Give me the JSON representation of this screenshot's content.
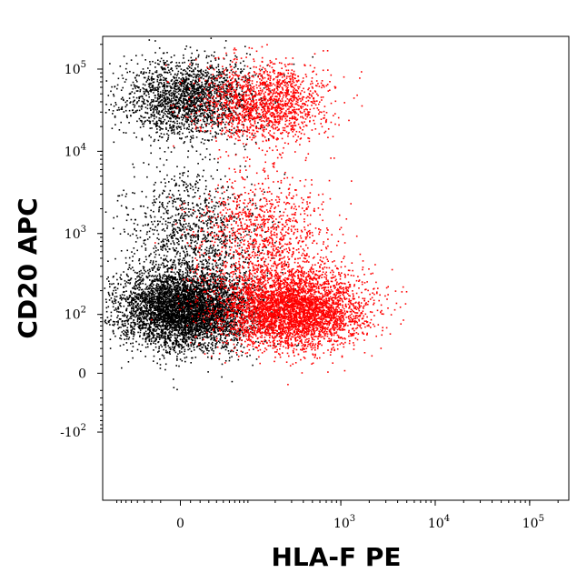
{
  "chart_data": {
    "type": "scatter",
    "xlabel": "HLA-F PE",
    "ylabel": "CD20 APC",
    "x_scale": "biexponential",
    "y_scale": "biexponential",
    "x_ticks": [
      {
        "value": 0,
        "base": "0",
        "exp": ""
      },
      {
        "value": 1000,
        "base": "10",
        "exp": "3"
      },
      {
        "value": 10000,
        "base": "10",
        "exp": "4"
      },
      {
        "value": 100000,
        "base": "10",
        "exp": "5"
      }
    ],
    "y_ticks": [
      {
        "value": 100000,
        "base": "10",
        "exp": "5"
      },
      {
        "value": 10000,
        "base": "10",
        "exp": "4"
      },
      {
        "value": 1000,
        "base": "10",
        "exp": "3"
      },
      {
        "value": 100,
        "base": "10",
        "exp": "2"
      },
      {
        "value": 0,
        "base": "0",
        "exp": ""
      },
      {
        "value": -100,
        "base": "-10",
        "exp": "2"
      }
    ],
    "grid": false,
    "legend": "none",
    "series": [
      {
        "color": "#000000",
        "populations": [
          {
            "x": 5,
            "y": 120,
            "count": 5200
          },
          {
            "x": 5,
            "y": 45000,
            "count": 2100
          },
          {
            "x": 10,
            "y": 1000,
            "count": 1100
          }
        ]
      },
      {
        "color": "#ff0000",
        "populations": [
          {
            "x": 300,
            "y": 120,
            "count": 4300
          },
          {
            "x": 150,
            "y": 40000,
            "count": 1600
          },
          {
            "x": 150,
            "y": 900,
            "count": 1100
          }
        ]
      }
    ]
  }
}
